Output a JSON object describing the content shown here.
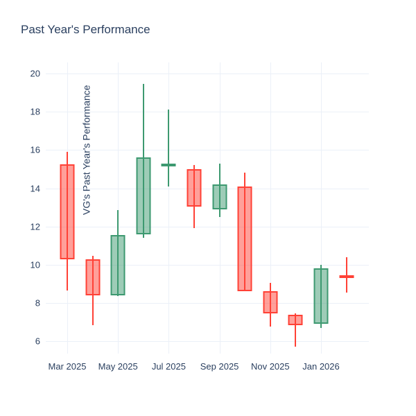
{
  "header": {
    "title": "Past Year's Performance"
  },
  "chart_data": {
    "type": "candlestick",
    "title": "Past Year's Performance",
    "xlabel": "",
    "ylabel": "VG's Past Year's Performance",
    "y_ticks": [
      6,
      8,
      10,
      12,
      14,
      16,
      18,
      20
    ],
    "ylim": [
      5.35,
      20.58
    ],
    "grid": true,
    "legend": "none",
    "x_gridline_indices": [
      0,
      2,
      4,
      6,
      8,
      10
    ],
    "x_tick_labels": [
      "Mar 2025",
      "May 2025",
      "Jul 2025",
      "Sep 2025",
      "Nov 2025",
      "Jan 2026"
    ],
    "colors": {
      "increasing_line": "#3D9970",
      "decreasing_line": "#FF4136",
      "increasing_fill": "rgba(61,153,112,0.5)",
      "decreasing_fill": "rgba(255,65,54,0.5)",
      "grid": "#EBF0F8",
      "text": "#2a3f5f",
      "background": "#ffffff"
    },
    "candles": [
      {
        "month": "Mar 2025",
        "open": 15.25,
        "high": 15.9,
        "low": 8.65,
        "close": 10.3,
        "direction": "decreasing"
      },
      {
        "month": "Apr 2025",
        "open": 10.3,
        "high": 10.45,
        "low": 6.85,
        "close": 8.4,
        "direction": "decreasing"
      },
      {
        "month": "May 2025",
        "open": 8.4,
        "high": 12.85,
        "low": 8.35,
        "close": 11.55,
        "direction": "increasing"
      },
      {
        "month": "Jun 2025",
        "open": 11.6,
        "high": 19.45,
        "low": 11.4,
        "close": 15.6,
        "direction": "increasing"
      },
      {
        "month": "Jul 2025",
        "open": 15.25,
        "high": 18.1,
        "low": 14.1,
        "close": 15.3,
        "direction": "increasing"
      },
      {
        "month": "Aug 2025",
        "open": 15.0,
        "high": 15.2,
        "low": 11.9,
        "close": 13.05,
        "direction": "decreasing"
      },
      {
        "month": "Sep 2025",
        "open": 12.9,
        "high": 15.3,
        "low": 12.5,
        "close": 14.2,
        "direction": "increasing"
      },
      {
        "month": "Oct 2025",
        "open": 14.1,
        "high": 14.8,
        "low": 8.6,
        "close": 8.6,
        "direction": "decreasing"
      },
      {
        "month": "Nov 2025",
        "open": 8.6,
        "high": 9.05,
        "low": 6.75,
        "close": 7.45,
        "direction": "decreasing"
      },
      {
        "month": "Dec 2025",
        "open": 7.4,
        "high": 7.45,
        "low": 5.7,
        "close": 6.85,
        "direction": "decreasing"
      },
      {
        "month": "Jan 2026",
        "open": 6.9,
        "high": 10.0,
        "low": 6.7,
        "close": 9.8,
        "direction": "increasing"
      },
      {
        "month": "Feb 2026",
        "open": 9.45,
        "high": 10.4,
        "low": 8.55,
        "close": 9.35,
        "direction": "decreasing"
      }
    ]
  }
}
